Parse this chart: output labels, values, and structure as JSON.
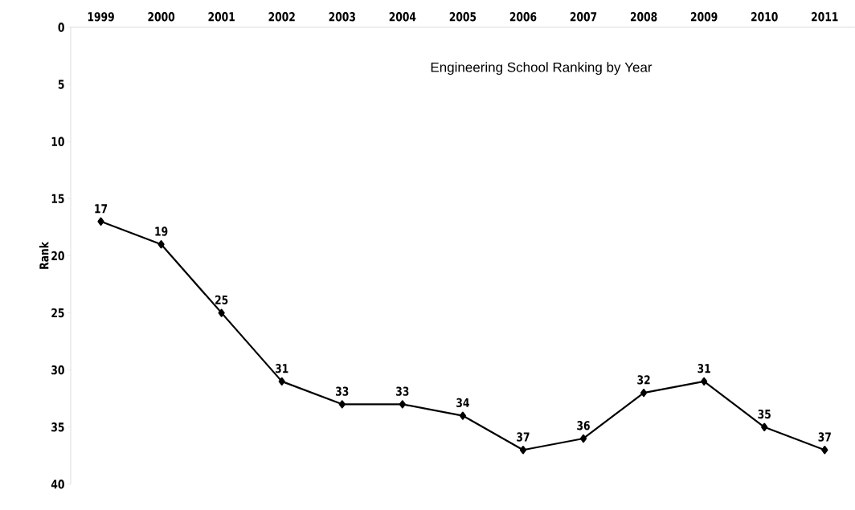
{
  "chart_data": {
    "type": "line",
    "title": "Engineering School Ranking by Year",
    "ylabel": "Rank",
    "categories": [
      "1999",
      "2000",
      "2001",
      "2002",
      "2003",
      "2004",
      "2005",
      "2006",
      "2007",
      "2008",
      "2009",
      "2010",
      "2011"
    ],
    "values": [
      17,
      19,
      25,
      31,
      33,
      33,
      34,
      37,
      36,
      32,
      31,
      35,
      37
    ],
    "color": "#000000",
    "marker": "diamond",
    "line_style": "solid",
    "data_labels": true,
    "grid": false,
    "ylim": [
      40,
      0
    ],
    "yticks": [
      0,
      5,
      10,
      15,
      20,
      25,
      30,
      35,
      40
    ]
  }
}
